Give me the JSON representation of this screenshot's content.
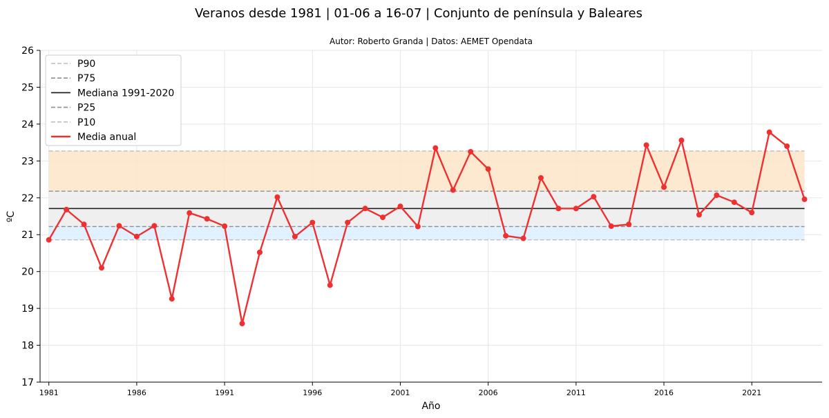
{
  "chart_data": {
    "type": "line",
    "title": "Veranos desde 1981 | 01-06 a 16-07 | Conjunto de península y Baleares",
    "subtitle": "Autor: Roberto Granda | Datos: AEMET Opendata",
    "xlabel": "Año",
    "ylabel": "ºC",
    "xlim": [
      1980.5,
      2025
    ],
    "ylim": [
      17,
      26
    ],
    "yticks": [
      17,
      18,
      19,
      20,
      21,
      22,
      23,
      24,
      25,
      26
    ],
    "xticks": [
      1981,
      1986,
      1991,
      1996,
      2001,
      2006,
      2011,
      2016,
      2021
    ],
    "grid": true,
    "legend_position": "top-left",
    "reference_lines": [
      {
        "name": "P90",
        "value": 23.27,
        "style": "dashed",
        "color": "#bdbdbd"
      },
      {
        "name": "P75",
        "value": 22.18,
        "style": "dashed",
        "color": "#8a8f99"
      },
      {
        "name": "Mediana 1991-2020",
        "value": 21.71,
        "style": "solid",
        "color": "#222222"
      },
      {
        "name": "P25",
        "value": 21.22,
        "style": "dashed",
        "color": "#8a8f99"
      },
      {
        "name": "P10",
        "value": 20.86,
        "style": "dashed",
        "color": "#bdbdbd"
      }
    ],
    "bands": [
      {
        "from": 22.18,
        "to": 23.27,
        "color": "#fde4c8"
      },
      {
        "from": 21.22,
        "to": 22.18,
        "color": "#ececec"
      },
      {
        "from": 20.86,
        "to": 21.22,
        "color": "#dcefff"
      }
    ],
    "series": [
      {
        "name": "Media anual",
        "color": "#ee3030",
        "x": [
          1981,
          1982,
          1983,
          1984,
          1985,
          1986,
          1987,
          1988,
          1989,
          1990,
          1991,
          1992,
          1993,
          1994,
          1995,
          1996,
          1997,
          1998,
          1999,
          2000,
          2001,
          2002,
          2003,
          2004,
          2005,
          2006,
          2007,
          2008,
          2009,
          2010,
          2011,
          2012,
          2013,
          2014,
          2015,
          2016,
          2017,
          2018,
          2019,
          2020,
          2021,
          2022,
          2023,
          2024
        ],
        "y": [
          20.86,
          21.68,
          21.28,
          20.1,
          21.24,
          20.95,
          21.24,
          19.26,
          21.59,
          21.43,
          21.23,
          18.59,
          20.52,
          22.02,
          20.95,
          21.33,
          19.63,
          21.33,
          21.71,
          21.47,
          21.77,
          21.22,
          23.35,
          22.21,
          23.25,
          22.78,
          20.97,
          20.9,
          22.54,
          21.71,
          21.71,
          22.03,
          21.23,
          21.28,
          23.43,
          22.29,
          23.56,
          21.54,
          22.07,
          21.88,
          21.6,
          23.78,
          23.4,
          21.96
        ]
      }
    ]
  }
}
